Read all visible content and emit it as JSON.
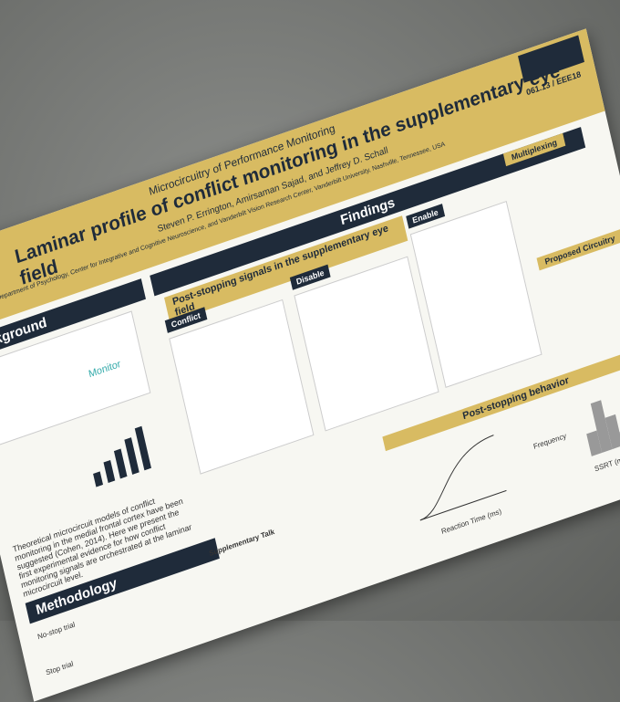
{
  "header": {
    "subtitle": "Microcircuitry of Performance Monitoring",
    "title": "Laminar profile of conflict monitoring in the supplementary eye field",
    "authors": "Steven P. Errington, Amirsaman Sajad, and Jeffrey D. Schall",
    "affiliation": "Department of Psychology, Center for Integrative and Cognitive Neuroscience, and Vanderbilt Vision Research Center, Vanderbilt University, Nashville, Tennessee, USA",
    "badge": "061.13 / EEE18"
  },
  "background": {
    "title": "Background",
    "label": "Monitor",
    "body": "Theoretical microcircuit models of conflict monitoring in the medial frontal cortex have been suggested (Cohen, 2014). Here we present the first experimental evidence for how conflict monitoring signals are orchestrated at the laminar microcircuit level."
  },
  "findings": {
    "title": "Findings",
    "banner": "Post-stopping signals in the supplementary eye field",
    "panels": [
      "Conflict",
      "Disable",
      "Enable",
      "Multiplexing"
    ]
  },
  "methodology": {
    "title": "Methodology",
    "trials": [
      "No-stop trial",
      "Stop trial"
    ],
    "talk": "Supplementary Talk"
  },
  "circuitry": {
    "title": "Proposed Circuitry"
  },
  "behavior": {
    "title": "Post-stopping behavior",
    "x_axis": "Reaction Time (ms)",
    "hist_x": "SSRT (ms)",
    "hist_y": "Frequency"
  }
}
